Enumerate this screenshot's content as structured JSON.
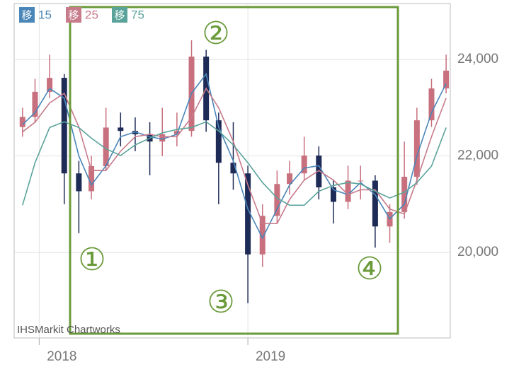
{
  "chart_data": {
    "type": "candlestick",
    "x": [
      2017.92,
      2017.98,
      2018.05,
      2018.12,
      2018.19,
      2018.25,
      2018.32,
      2018.39,
      2018.46,
      2018.53,
      2018.59,
      2018.66,
      2018.73,
      2018.8,
      2018.86,
      2018.93,
      2019.0,
      2019.07,
      2019.14,
      2019.2,
      2019.27,
      2019.34,
      2019.41,
      2019.48,
      2019.54,
      2019.61,
      2019.68,
      2019.75,
      2019.81,
      2019.88,
      2019.95
    ],
    "open": [
      22600,
      22810,
      23330,
      23620,
      21640,
      21270,
      21790,
      22590,
      22520,
      22450,
      22300,
      22450,
      22520,
      24060,
      22740,
      21860,
      21640,
      19960,
      20760,
      21420,
      21640,
      22010,
      21350,
      21050,
      21490,
      21490,
      20540,
      20840,
      21570,
      22740,
      23400
    ],
    "high": [
      23000,
      23600,
      24100,
      23700,
      21900,
      22000,
      23000,
      22900,
      22800,
      22700,
      23000,
      22900,
      24400,
      24200,
      22900,
      22700,
      21800,
      21000,
      21700,
      21900,
      22400,
      22200,
      21500,
      21800,
      21800,
      21600,
      21000,
      22300,
      23000,
      23600,
      24100
    ],
    "low": [
      22400,
      22700,
      23200,
      21000,
      20400,
      21100,
      21700,
      22200,
      22100,
      21600,
      22000,
      22200,
      22400,
      22500,
      21000,
      21300,
      18950,
      19700,
      20600,
      21200,
      21500,
      21100,
      20600,
      20900,
      21100,
      20100,
      20200,
      20700,
      21400,
      22600,
      23300
    ],
    "close": [
      22810,
      23330,
      23620,
      21640,
      21270,
      21790,
      22590,
      22520,
      22450,
      22300,
      22450,
      22520,
      24060,
      22740,
      21860,
      21640,
      19960,
      20760,
      21420,
      21640,
      22010,
      21350,
      21050,
      21490,
      21490,
      20540,
      20840,
      21570,
      22740,
      23400,
      23770
    ],
    "up_color": "#c8707e",
    "down_color": "#1f2b57",
    "series": [
      {
        "badge": "移",
        "name": "15",
        "color": "#4a86b8",
        "values": [
          22650,
          22900,
          23400,
          23200,
          22000,
          21400,
          21800,
          22400,
          22500,
          22400,
          22350,
          22450,
          23300,
          23700,
          22600,
          21900,
          20900,
          20300,
          20900,
          21400,
          21750,
          21800,
          21300,
          21200,
          21450,
          21200,
          20700,
          21000,
          22000,
          22900,
          23500
        ]
      },
      {
        "badge": "移",
        "name": "25",
        "color": "#c77b8b",
        "values": [
          22500,
          22700,
          23100,
          23300,
          22600,
          21700,
          21700,
          22100,
          22400,
          22450,
          22400,
          22400,
          22800,
          23400,
          23000,
          22300,
          21400,
          20600,
          20600,
          21100,
          21500,
          21700,
          21500,
          21200,
          21300,
          21300,
          20900,
          20800,
          21500,
          22400,
          23200
        ]
      },
      {
        "badge": "移",
        "name": "75",
        "color": "#5aa39a",
        "values": [
          20980,
          21860,
          22590,
          22710,
          22590,
          22370,
          22150,
          22010,
          22230,
          22370,
          22480,
          22550,
          22590,
          22710,
          22520,
          22230,
          21860,
          21450,
          21130,
          20980,
          20980,
          21270,
          21390,
          21450,
          21420,
          21270,
          21130,
          21250,
          21450,
          21790,
          22590
        ]
      }
    ],
    "xlim": [
      2017.88,
      2019.97
    ],
    "xticks": [
      2018,
      2019
    ],
    "ylim": [
      18230,
      25160
    ],
    "yticks": [
      {
        "value": 20000,
        "label": "20,000"
      },
      {
        "value": 22000,
        "label": "22,000"
      },
      {
        "value": 24000,
        "label": "24,000"
      }
    ],
    "grid": true,
    "annotations": [
      "①",
      "②",
      "③",
      "④"
    ],
    "watermark": "IHSMarkit Chartworks"
  }
}
